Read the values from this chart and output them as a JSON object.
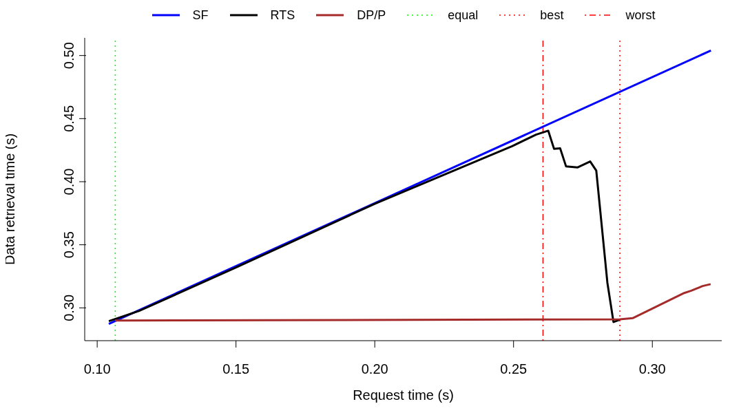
{
  "chart_data": {
    "type": "line",
    "xlabel": "Request time (s)",
    "ylabel": "Data retrieval time (s)",
    "xlim": [
      0.0955,
      0.325
    ],
    "xticks": [
      {
        "value": 0.1,
        "label": "0.10"
      },
      0.15,
      {
        "value": 0.2,
        "label": "0.20"
      },
      0.25,
      {
        "value": 0.3,
        "label": "0.30"
      }
    ],
    "ylim": [
      0.274,
      0.514
    ],
    "yticks": [
      {
        "value": 0.3,
        "label": "0.30"
      },
      0.35,
      {
        "value": 0.4,
        "label": "0.40"
      },
      0.45,
      {
        "value": 0.5,
        "label": "0.50"
      }
    ],
    "legend": "top",
    "marker": "none",
    "line_style": "solid",
    "series": [
      {
        "name": "SF",
        "color": "#0000ff",
        "x": [
          0.1042,
          0.3211
        ],
        "values": [
          0.2873,
          0.504
        ]
      },
      {
        "name": "RTS",
        "color": "#000000",
        "x": [
          0.1042,
          0.115,
          0.15,
          0.2,
          0.2387,
          0.2495,
          0.2581,
          0.2625,
          0.2646,
          0.2668,
          0.2689,
          0.273,
          0.2776,
          0.2798,
          0.2838,
          0.286,
          0.2882
        ],
        "values": [
          0.2895,
          0.2975,
          0.332,
          0.3825,
          0.4182,
          0.4282,
          0.4373,
          0.4404,
          0.426,
          0.4264,
          0.4122,
          0.4113,
          0.416,
          0.4088,
          0.32,
          0.2888,
          0.2906
        ]
      },
      {
        "name": "DP/P",
        "color": "#a52a2a",
        "x": [
          0.1064,
          0.2883,
          0.2929,
          0.3115,
          0.314,
          0.3181,
          0.321
        ],
        "values": [
          0.29,
          0.2909,
          0.2918,
          0.3118,
          0.3136,
          0.3173,
          0.3188
        ]
      }
    ],
    "ref_lines": [
      {
        "axis": "x",
        "value": 0.1065,
        "label": "equal",
        "color": "#00ff00",
        "line_style": "dotted"
      },
      {
        "axis": "x",
        "value": 0.2883,
        "label": "best",
        "color": "#ff0000",
        "line_style": "dotted"
      },
      {
        "axis": "x",
        "value": 0.2606,
        "label": "worst",
        "color": "#ff0000",
        "line_style": "dashdot"
      }
    ]
  }
}
